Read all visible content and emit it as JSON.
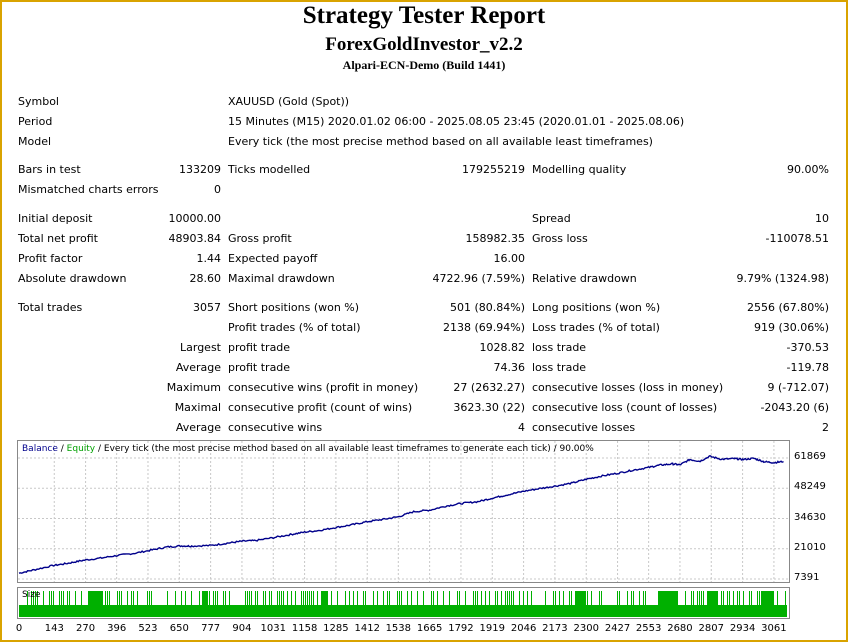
{
  "header": {
    "title": "Strategy Tester Report",
    "expert": "ForexGoldInvestor_v2.2",
    "server": "Alpari-ECN-Demo (Build 1441)"
  },
  "info": {
    "symbol_label": "Symbol",
    "symbol_value": "XAUUSD (Gold (Spot))",
    "period_label": "Period",
    "period_value": "15 Minutes (M15) 2020.01.02 06:00 - 2025.08.05 23:45 (2020.01.01 - 2025.08.06)",
    "model_label": "Model",
    "model_value": "Every tick (the most precise method based on all available least timeframes)"
  },
  "rows": [
    {
      "y": 163,
      "c": [
        "Bars in test",
        "133209",
        "Ticks modelled",
        "179255219",
        "Modelling quality",
        "90.00%"
      ]
    },
    {
      "y": 183,
      "c": [
        "Mismatched charts errors",
        "0",
        "",
        "",
        "",
        ""
      ]
    },
    {
      "y": 212,
      "c": [
        "Initial deposit",
        "10000.00",
        "",
        "",
        "Spread",
        "10"
      ]
    },
    {
      "y": 232,
      "c": [
        "Total net profit",
        "48903.84",
        "Gross profit",
        "158982.35",
        "Gross loss",
        "-110078.51"
      ]
    },
    {
      "y": 252,
      "c": [
        "Profit factor",
        "1.44",
        "Expected payoff",
        "16.00",
        "",
        ""
      ]
    },
    {
      "y": 272,
      "c": [
        "Absolute drawdown",
        "28.60",
        "Maximal drawdown",
        "4722.96 (7.59%)",
        "Relative drawdown",
        "9.79% (1324.98)"
      ]
    },
    {
      "y": 301,
      "c": [
        "Total trades",
        "3057",
        "Short positions (won %)",
        "501 (80.84%)",
        "Long positions (won %)",
        "2556 (67.80%)"
      ]
    },
    {
      "y": 321,
      "c": [
        "",
        "",
        "Profit trades (% of total)",
        "2138 (69.94%)",
        "Loss trades (% of total)",
        "919 (30.06%)"
      ]
    },
    {
      "y": 341,
      "c": [
        "",
        "Largest",
        "profit trade",
        "1028.82",
        "loss trade",
        "-370.53"
      ]
    },
    {
      "y": 361,
      "c": [
        "",
        "Average",
        "profit trade",
        "74.36",
        "loss trade",
        "-119.78"
      ]
    },
    {
      "y": 381,
      "c": [
        "",
        "Maximum",
        "consecutive wins (profit in money)",
        "27 (2632.27)",
        "consecutive losses (loss in money)",
        "9 (-712.07)"
      ]
    },
    {
      "y": 401,
      "c": [
        "",
        "Maximal",
        "consecutive profit (count of wins)",
        "3623.30 (22)",
        "consecutive loss (count of losses)",
        "-2043.20 (6)"
      ]
    },
    {
      "y": 421,
      "c": [
        "",
        "Average",
        "consecutive wins",
        "4",
        "consecutive losses",
        "2"
      ]
    }
  ],
  "chart_data": {
    "type": "line",
    "legend": {
      "balance": "Balance",
      "sep1": " / ",
      "equity": "Equity",
      "desc": " / Every tick (the most precise method based on all available least timeframes to generate each tick) / 90.00%"
    },
    "yticks": [
      "61869",
      "48249",
      "34630",
      "21010",
      "7391"
    ],
    "ylim": [
      7391,
      61869
    ],
    "xticks": [
      "0",
      "143",
      "270",
      "396",
      "523",
      "650",
      "777",
      "904",
      "1031",
      "1158",
      "1285",
      "1412",
      "1538",
      "1665",
      "1792",
      "1919",
      "2046",
      "2173",
      "2300",
      "2427",
      "2553",
      "2680",
      "2807",
      "2934",
      "3061"
    ],
    "xlim": [
      0,
      3110
    ],
    "size_label": "Size",
    "colors": {
      "balance": "#00008b",
      "equity": "#00a000",
      "size": "#00b000",
      "grid": "#c8c8c8"
    },
    "series": [
      {
        "name": "Balance",
        "x": [
          0,
          60,
          140,
          200,
          260,
          330,
          400,
          470,
          540,
          600,
          660,
          700,
          780,
          850,
          904,
          960,
          1031,
          1100,
          1158,
          1220,
          1285,
          1350,
          1412,
          1480,
          1538,
          1600,
          1665,
          1730,
          1792,
          1860,
          1919,
          1980,
          2046,
          2110,
          2173,
          2240,
          2300,
          2360,
          2427,
          2490,
          2553,
          2600,
          2650,
          2680,
          2720,
          2760,
          2800,
          2850,
          2900,
          2934,
          2980,
          3020,
          3061,
          3100
        ],
        "y": [
          10000,
          11500,
          13500,
          14500,
          15800,
          16800,
          18000,
          19000,
          20500,
          21800,
          22300,
          22200,
          22500,
          23600,
          24400,
          24700,
          26000,
          27400,
          28500,
          29300,
          30600,
          31800,
          33200,
          34300,
          35400,
          37700,
          38400,
          40200,
          41400,
          42200,
          43800,
          45300,
          46900,
          48100,
          49200,
          50500,
          52300,
          53700,
          55000,
          56400,
          57600,
          58700,
          59200,
          58800,
          61200,
          60400,
          62600,
          61300,
          61600,
          61200,
          61700,
          60200,
          59800,
          60300
        ]
      }
    ]
  }
}
